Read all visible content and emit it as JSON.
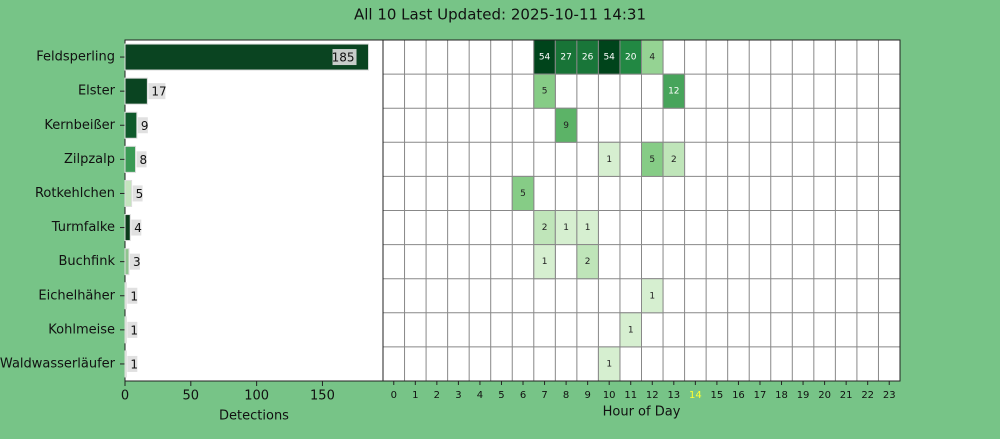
{
  "chart_data": [
    {
      "type": "barh",
      "title": "All 10 Last Updated: 2025-10-11 14:31",
      "categories": [
        "Feldsperling",
        "Elster",
        "Kernbeißer",
        "Zilpzalp",
        "Rotkehlchen",
        "Turmfalke",
        "Buchfink",
        "Eichelhäher",
        "Kohlmeise",
        "Waldwasserläufer"
      ],
      "values": [
        185,
        17,
        9,
        8,
        5,
        4,
        3,
        1,
        1,
        1
      ],
      "colors": [
        "#0a4421",
        "#0a4421",
        "#0f5a2b",
        "#3a9a55",
        "#c5e4bf",
        "#0a3a1a",
        "#8fc48f",
        "#d9ecd5",
        "#d9ecd5",
        "#d9ecd5"
      ],
      "xlim": [
        0,
        196
      ],
      "xticks": [
        0,
        50,
        100,
        150
      ],
      "xlabel": "Detections"
    },
    {
      "type": "heatmap",
      "xlabel": "Hour of Day",
      "colormap": "Greens",
      "x": [
        0,
        1,
        2,
        3,
        4,
        5,
        6,
        7,
        8,
        9,
        10,
        11,
        12,
        13,
        14,
        15,
        16,
        17,
        18,
        19,
        20,
        21,
        22,
        23
      ],
      "highlight": 14,
      "highlight_color": "#ffff33",
      "values": [
        [
          null,
          null,
          null,
          null,
          null,
          null,
          null,
          54,
          27,
          26,
          54,
          20,
          4,
          null,
          null,
          null,
          null,
          null,
          null,
          null,
          null,
          null,
          null,
          null
        ],
        [
          null,
          null,
          null,
          null,
          null,
          null,
          null,
          5,
          null,
          null,
          null,
          null,
          null,
          12,
          null,
          null,
          null,
          null,
          null,
          null,
          null,
          null,
          null,
          null
        ],
        [
          null,
          null,
          null,
          null,
          null,
          null,
          null,
          null,
          9,
          null,
          null,
          null,
          null,
          null,
          null,
          null,
          null,
          null,
          null,
          null,
          null,
          null,
          null,
          null
        ],
        [
          null,
          null,
          null,
          null,
          null,
          null,
          null,
          null,
          null,
          null,
          1,
          null,
          5,
          2,
          null,
          null,
          null,
          null,
          null,
          null,
          null,
          null,
          null,
          null
        ],
        [
          null,
          null,
          null,
          null,
          null,
          null,
          5,
          null,
          null,
          null,
          null,
          null,
          null,
          null,
          null,
          null,
          null,
          null,
          null,
          null,
          null,
          null,
          null,
          null
        ],
        [
          null,
          null,
          null,
          null,
          null,
          null,
          null,
          2,
          1,
          1,
          null,
          null,
          null,
          null,
          null,
          null,
          null,
          null,
          null,
          null,
          null,
          null,
          null,
          null
        ],
        [
          null,
          null,
          null,
          null,
          null,
          null,
          null,
          1,
          null,
          2,
          null,
          null,
          null,
          null,
          null,
          null,
          null,
          null,
          null,
          null,
          null,
          null,
          null,
          null
        ],
        [
          null,
          null,
          null,
          null,
          null,
          null,
          null,
          null,
          null,
          null,
          null,
          null,
          1,
          null,
          null,
          null,
          null,
          null,
          null,
          null,
          null,
          null,
          null,
          null
        ],
        [
          null,
          null,
          null,
          null,
          null,
          null,
          null,
          null,
          null,
          null,
          null,
          1,
          null,
          null,
          null,
          null,
          null,
          null,
          null,
          null,
          null,
          null,
          null,
          null
        ],
        [
          null,
          null,
          null,
          null,
          null,
          null,
          null,
          null,
          null,
          null,
          1,
          null,
          null,
          null,
          null,
          null,
          null,
          null,
          null,
          null,
          null,
          null,
          null,
          null
        ]
      ]
    }
  ]
}
